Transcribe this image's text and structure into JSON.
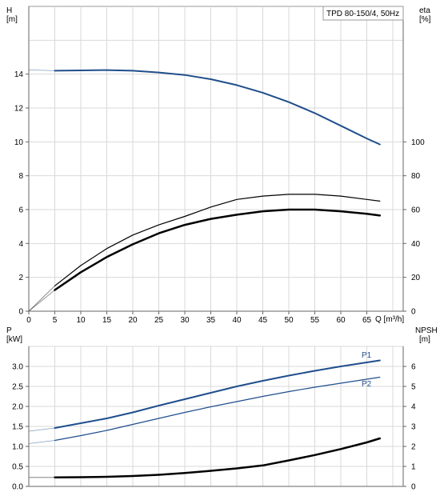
{
  "chart_data": [
    {
      "type": "line",
      "title": "TPD 80-150/4, 50Hz",
      "xlabel": "Q [m³/h]",
      "ylabel_left": {
        "name": "H",
        "unit": "[m]"
      },
      "ylabel_right": {
        "name": "eta",
        "unit": "[%]"
      },
      "xlim": [
        0,
        72
      ],
      "ylim_left": [
        0,
        18
      ],
      "ylim_right": [
        0,
        180
      ],
      "x_ticks": [
        0,
        5,
        10,
        15,
        20,
        25,
        30,
        35,
        40,
        45,
        50,
        55,
        60,
        65
      ],
      "y_ticks_left": [
        0,
        2,
        4,
        6,
        8,
        10,
        12,
        14
      ],
      "y_ticks_right": [
        0,
        20,
        40,
        60,
        80,
        100
      ],
      "grid": true,
      "series": [
        {
          "axis": "left",
          "color": "#1f4e8c",
          "width": 2,
          "points": [
            [
              0,
              14.25
            ],
            [
              5,
              14.2
            ],
            [
              10,
              14.22
            ],
            [
              15,
              14.24
            ],
            [
              20,
              14.2
            ],
            [
              25,
              14.1
            ],
            [
              30,
              13.95
            ],
            [
              35,
              13.7
            ],
            [
              40,
              13.35
            ],
            [
              45,
              12.9
            ],
            [
              50,
              12.35
            ],
            [
              55,
              11.7
            ],
            [
              60,
              10.95
            ],
            [
              65,
              10.2
            ],
            [
              67.5,
              9.85
            ]
          ],
          "faint_to": 5
        },
        {
          "axis": "right",
          "color": "#000000",
          "width": 1.2,
          "points": [
            [
              0,
              0
            ],
            [
              5,
              15
            ],
            [
              10,
              27
            ],
            [
              15,
              37
            ],
            [
              20,
              45
            ],
            [
              25,
              51
            ],
            [
              30,
              56
            ],
            [
              35,
              61.5
            ],
            [
              40,
              66
            ],
            [
              45,
              68
            ],
            [
              50,
              69
            ],
            [
              55,
              69
            ],
            [
              60,
              68
            ],
            [
              65,
              66
            ],
            [
              67.5,
              65
            ]
          ],
          "faint_to": 5
        },
        {
          "axis": "right",
          "color": "#000000",
          "width": 2.5,
          "points": [
            [
              0,
              0
            ],
            [
              5,
              12.5
            ],
            [
              10,
              23
            ],
            [
              15,
              32
            ],
            [
              20,
              39.5
            ],
            [
              25,
              46
            ],
            [
              30,
              51
            ],
            [
              35,
              54.5
            ],
            [
              40,
              57
            ],
            [
              45,
              59
            ],
            [
              50,
              60
            ],
            [
              55,
              60
            ],
            [
              60,
              59
            ],
            [
              65,
              57.5
            ],
            [
              67.5,
              56.5
            ]
          ],
          "faint_to": 5
        }
      ]
    },
    {
      "type": "line",
      "xlabel": "",
      "ylabel_left": {
        "name": "P",
        "unit": "[kW]"
      },
      "ylabel_right": {
        "name": "NPSH",
        "unit": "[m]"
      },
      "xlim": [
        0,
        72
      ],
      "ylim_left": [
        0,
        3.5
      ],
      "ylim_right": [
        0,
        7
      ],
      "y_ticks_left": [
        0.0,
        0.5,
        1.0,
        1.5,
        2.0,
        2.5,
        3.0
      ],
      "y_tick_labels_left": [
        "0.0",
        "0.5",
        "1.0",
        "1.5",
        "2.0",
        "2.5",
        "3.0"
      ],
      "y_ticks_right": [
        0,
        1,
        2,
        3,
        4,
        5,
        6
      ],
      "grid": true,
      "series": [
        {
          "name": "P1",
          "axis": "left",
          "color": "#1f4e8c",
          "width": 2,
          "points": [
            [
              0,
              1.38
            ],
            [
              5,
              1.46
            ],
            [
              10,
              1.58
            ],
            [
              15,
              1.7
            ],
            [
              20,
              1.85
            ],
            [
              25,
              2.02
            ],
            [
              30,
              2.18
            ],
            [
              35,
              2.34
            ],
            [
              40,
              2.5
            ],
            [
              45,
              2.64
            ],
            [
              50,
              2.77
            ],
            [
              55,
              2.89
            ],
            [
              60,
              3.0
            ],
            [
              65,
              3.1
            ],
            [
              67.5,
              3.15
            ]
          ],
          "faint_to": 5
        },
        {
          "name": "P2",
          "axis": "left",
          "color": "#1f4e8c",
          "width": 1.2,
          "points": [
            [
              0,
              1.07
            ],
            [
              5,
              1.15
            ],
            [
              10,
              1.27
            ],
            [
              15,
              1.4
            ],
            [
              20,
              1.55
            ],
            [
              25,
              1.7
            ],
            [
              30,
              1.85
            ],
            [
              35,
              1.99
            ],
            [
              40,
              2.12
            ],
            [
              45,
              2.25
            ],
            [
              50,
              2.37
            ],
            [
              55,
              2.48
            ],
            [
              60,
              2.58
            ],
            [
              65,
              2.68
            ],
            [
              67.5,
              2.73
            ]
          ],
          "faint_to": 5
        },
        {
          "axis": "right",
          "color": "#000000",
          "width": 2.5,
          "points": [
            [
              0,
              0.45
            ],
            [
              5,
              0.45
            ],
            [
              10,
              0.46
            ],
            [
              15,
              0.48
            ],
            [
              20,
              0.52
            ],
            [
              25,
              0.58
            ],
            [
              30,
              0.67
            ],
            [
              35,
              0.78
            ],
            [
              40,
              0.9
            ],
            [
              45,
              1.05
            ],
            [
              50,
              1.3
            ],
            [
              55,
              1.57
            ],
            [
              60,
              1.87
            ],
            [
              65,
              2.2
            ],
            [
              67.5,
              2.4
            ]
          ],
          "faint_to": 5
        }
      ]
    }
  ]
}
